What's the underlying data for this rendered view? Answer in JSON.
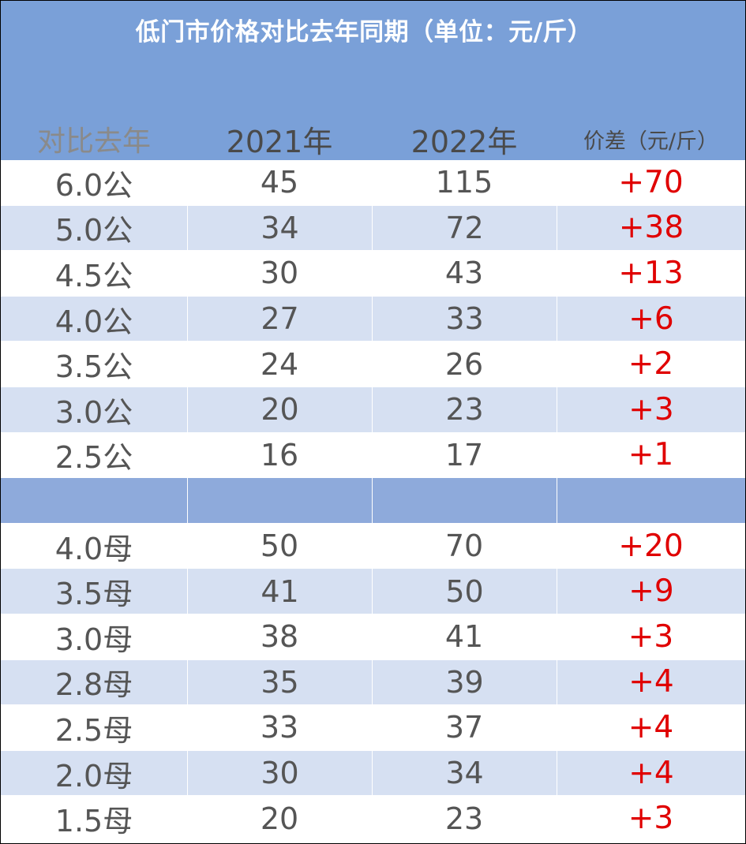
{
  "title": "低门市价格对比去年同期（单位：元/斤）",
  "columns": [
    "对比去年",
    "2021年",
    "2022年",
    "价差（元/斤）"
  ],
  "colors": {
    "header_bg": "#7aa0d8",
    "alt_row_bg": "#d6e0f2",
    "separator_bg": "#8eaadb",
    "diff_text": "#e00000"
  },
  "male_rows": [
    {
      "spec": "6.0公",
      "y2021": "45",
      "y2022": "115",
      "diff": "+70"
    },
    {
      "spec": "5.0公",
      "y2021": "34",
      "y2022": "72",
      "diff": "+38"
    },
    {
      "spec": "4.5公",
      "y2021": "30",
      "y2022": "43",
      "diff": "+13"
    },
    {
      "spec": "4.0公",
      "y2021": "27",
      "y2022": "33",
      "diff": "+6"
    },
    {
      "spec": "3.5公",
      "y2021": "24",
      "y2022": "26",
      "diff": "+2"
    },
    {
      "spec": "3.0公",
      "y2021": "20",
      "y2022": "23",
      "diff": "+3"
    },
    {
      "spec": "2.5公",
      "y2021": "16",
      "y2022": "17",
      "diff": "+1"
    }
  ],
  "female_rows": [
    {
      "spec": "4.0母",
      "y2021": "50",
      "y2022": "70",
      "diff": "+20"
    },
    {
      "spec": "3.5母",
      "y2021": "41",
      "y2022": "50",
      "diff": "+9"
    },
    {
      "spec": "3.0母",
      "y2021": "38",
      "y2022": "41",
      "diff": "+3"
    },
    {
      "spec": "2.8母",
      "y2021": "35",
      "y2022": "39",
      "diff": "+4"
    },
    {
      "spec": "2.5母",
      "y2021": "33",
      "y2022": "37",
      "diff": "+4"
    },
    {
      "spec": "2.0母",
      "y2021": "30",
      "y2022": "34",
      "diff": "+4"
    },
    {
      "spec": "1.5母",
      "y2021": "20",
      "y2022": "23",
      "diff": "+3"
    }
  ]
}
